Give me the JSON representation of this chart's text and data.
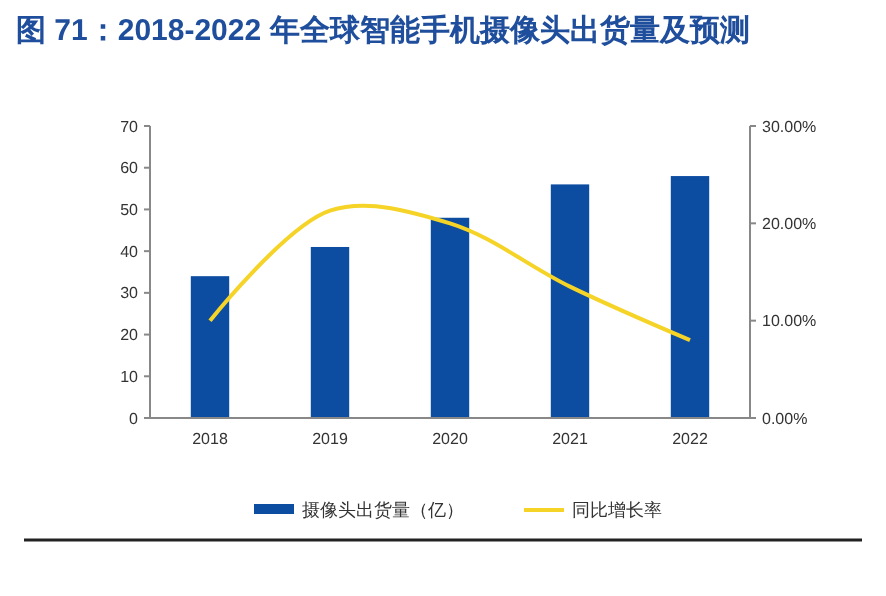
{
  "chart_data": {
    "type": "bar",
    "title": "图 71：2018-2022 年全球智能手机摄像头出货量及预测",
    "categories": [
      "2018",
      "2019",
      "2020",
      "2021",
      "2022"
    ],
    "series": [
      {
        "name": "摄像头出货量（亿）",
        "color": "#0c4da2",
        "values": [
          34,
          41,
          48,
          56,
          58
        ]
      },
      {
        "name": "同比增长率",
        "type": "line",
        "axis": "y2",
        "color": "#f5d327",
        "values": [
          10,
          21.3,
          20,
          13.5,
          8
        ]
      }
    ],
    "ylim": [
      0,
      70
    ],
    "yticks": [
      0,
      10,
      20,
      30,
      40,
      50,
      60,
      70
    ],
    "y2lim": [
      0,
      30
    ],
    "y2ticks": [
      {
        "value": 0,
        "label": "0.00%"
      },
      {
        "value": 10,
        "label": "10.00%"
      },
      {
        "value": 20,
        "label": "20.00%"
      },
      {
        "value": 30,
        "label": "30.00%"
      }
    ],
    "legend": "bottom",
    "grid": false
  }
}
